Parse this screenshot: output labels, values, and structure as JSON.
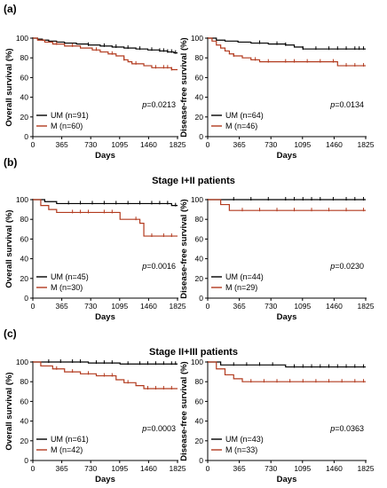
{
  "panels": [
    {
      "letter": "(a)",
      "title": ""
    },
    {
      "letter": "(b)",
      "title": "Stage I+II patients"
    },
    {
      "letter": "(c)",
      "title": "Stage II+III patients"
    }
  ],
  "colors": {
    "UM": "#000000",
    "M": "#b23a1e"
  },
  "chart_data": [
    {
      "type": "line",
      "panel": "(a)",
      "ylabel": "Overall survival (%)",
      "xlabel": "Days",
      "xticks": [
        0,
        365,
        730,
        1095,
        1460,
        1825
      ],
      "yticks": [
        0,
        20,
        40,
        60,
        80,
        100
      ],
      "xlim": [
        0,
        1825
      ],
      "ylim": [
        0,
        100
      ],
      "p_text": "=0.0213",
      "series": [
        {
          "name": "UM (n=91)",
          "group": "UM",
          "steps": [
            [
              0,
              100
            ],
            [
              60,
              99
            ],
            [
              120,
              98
            ],
            [
              200,
              97
            ],
            [
              300,
              96
            ],
            [
              400,
              95
            ],
            [
              550,
              94
            ],
            [
              700,
              93
            ],
            [
              850,
              92
            ],
            [
              1000,
              91
            ],
            [
              1150,
              90
            ],
            [
              1300,
              89
            ],
            [
              1450,
              88
            ],
            [
              1600,
              87
            ],
            [
              1700,
              86
            ],
            [
              1780,
              85
            ],
            [
              1825,
              85
            ]
          ],
          "censor": [
            700,
            900,
            1050,
            1200,
            1350,
            1500,
            1600,
            1650,
            1700,
            1750,
            1800
          ]
        },
        {
          "name": "M (n=60)",
          "group": "M",
          "steps": [
            [
              0,
              100
            ],
            [
              60,
              98
            ],
            [
              150,
              96
            ],
            [
              250,
              94
            ],
            [
              400,
              92
            ],
            [
              600,
              90
            ],
            [
              750,
              88
            ],
            [
              850,
              86
            ],
            [
              950,
              84
            ],
            [
              1050,
              82
            ],
            [
              1150,
              78
            ],
            [
              1200,
              76
            ],
            [
              1250,
              74
            ],
            [
              1400,
              72
            ],
            [
              1500,
              70
            ],
            [
              1750,
              68
            ],
            [
              1825,
              68
            ]
          ],
          "censor": [
            300,
            500,
            800,
            1000,
            1150,
            1300,
            1550,
            1650,
            1700,
            1750
          ]
        }
      ]
    },
    {
      "type": "line",
      "panel": "(a)",
      "ylabel": "Disease-free survival (%)",
      "xlabel": "Days",
      "xticks": [
        0,
        365,
        730,
        1095,
        1460,
        1825
      ],
      "yticks": [
        0,
        20,
        40,
        60,
        80,
        100
      ],
      "xlim": [
        0,
        1825
      ],
      "ylim": [
        0,
        100
      ],
      "p_text": "=0.0134",
      "series": [
        {
          "name": "UM (n=64)",
          "group": "UM",
          "steps": [
            [
              0,
              100
            ],
            [
              100,
              98
            ],
            [
              200,
              97
            ],
            [
              350,
              96
            ],
            [
              500,
              95
            ],
            [
              700,
              94
            ],
            [
              900,
              93
            ],
            [
              1000,
              91
            ],
            [
              1100,
              89
            ],
            [
              1825,
              89
            ]
          ],
          "censor": [
            600,
            800,
            900,
            1100,
            1250,
            1400,
            1500,
            1600,
            1700,
            1750,
            1800
          ]
        },
        {
          "name": "M (n=46)",
          "group": "M",
          "steps": [
            [
              0,
              100
            ],
            [
              50,
              97
            ],
            [
              100,
              93
            ],
            [
              150,
              90
            ],
            [
              200,
              87
            ],
            [
              250,
              84
            ],
            [
              300,
              82
            ],
            [
              400,
              80
            ],
            [
              500,
              78
            ],
            [
              600,
              76
            ],
            [
              1500,
              72
            ],
            [
              1825,
              72
            ]
          ],
          "censor": [
            300,
            550,
            700,
            900,
            1000,
            1150,
            1300,
            1450,
            1600,
            1700,
            1800
          ]
        }
      ]
    },
    {
      "type": "line",
      "panel": "(b)",
      "ylabel": "Overall survival (%)",
      "xlabel": "Days",
      "xticks": [
        0,
        365,
        730,
        1095,
        1460,
        1825
      ],
      "yticks": [
        0,
        20,
        40,
        60,
        80,
        100
      ],
      "xlim": [
        0,
        1825
      ],
      "ylim": [
        0,
        100
      ],
      "p_text": "=0.0016",
      "series": [
        {
          "name": "UM (n=45)",
          "group": "UM",
          "steps": [
            [
              0,
              100
            ],
            [
              150,
              98
            ],
            [
              300,
              96
            ],
            [
              1750,
              94
            ],
            [
              1825,
              94
            ]
          ],
          "censor": [
            450,
            600,
            750,
            900,
            1050,
            1200,
            1350,
            1500,
            1600,
            1700,
            1800
          ]
        },
        {
          "name": "M (n=30)",
          "group": "M",
          "steps": [
            [
              0,
              100
            ],
            [
              100,
              94
            ],
            [
              200,
              90
            ],
            [
              300,
              87
            ],
            [
              1100,
              80
            ],
            [
              1350,
              76
            ],
            [
              1400,
              63
            ],
            [
              1825,
              63
            ]
          ],
          "censor": [
            500,
            600,
            700,
            900,
            1000,
            1300,
            1500,
            1650,
            1750
          ]
        }
      ]
    },
    {
      "type": "line",
      "panel": "(b)",
      "ylabel": "Disease-free survival (%)",
      "xlabel": "Days",
      "xticks": [
        0,
        365,
        730,
        1095,
        1460,
        1825
      ],
      "yticks": [
        0,
        20,
        40,
        60,
        80,
        100
      ],
      "xlim": [
        0,
        1825
      ],
      "ylim": [
        0,
        100
      ],
      "p_text": "=0.0230",
      "series": [
        {
          "name": "UM (n=44)",
          "group": "UM",
          "steps": [
            [
              0,
              100
            ],
            [
              1825,
              100
            ]
          ],
          "censor": [
            300,
            500,
            700,
            900,
            1000,
            1100,
            1200,
            1300,
            1450,
            1600,
            1700,
            1800
          ]
        },
        {
          "name": "M (n=29)",
          "group": "M",
          "steps": [
            [
              0,
              100
            ],
            [
              150,
              95
            ],
            [
              250,
              89
            ],
            [
              1825,
              89
            ]
          ],
          "censor": [
            400,
            600,
            800,
            1000,
            1200,
            1400,
            1600,
            1800
          ]
        }
      ]
    },
    {
      "type": "line",
      "panel": "(c)",
      "ylabel": "Overall survival (%)",
      "xlabel": "Days",
      "xticks": [
        0,
        365,
        730,
        1095,
        1460,
        1825
      ],
      "yticks": [
        0,
        20,
        40,
        60,
        80,
        100
      ],
      "xlim": [
        0,
        1825
      ],
      "ylim": [
        0,
        100
      ],
      "p_text": "=0.0003",
      "series": [
        {
          "name": "UM (n=61)",
          "group": "UM",
          "steps": [
            [
              0,
              100
            ],
            [
              700,
              99
            ],
            [
              1100,
              98
            ],
            [
              1825,
              98
            ]
          ],
          "censor": [
            200,
            350,
            500,
            600,
            800,
            900,
            1000,
            1200,
            1350,
            1450,
            1550,
            1650,
            1750,
            1800
          ]
        },
        {
          "name": "M (n=42)",
          "group": "M",
          "steps": [
            [
              0,
              100
            ],
            [
              100,
              96
            ],
            [
              250,
              93
            ],
            [
              400,
              90
            ],
            [
              600,
              88
            ],
            [
              800,
              86
            ],
            [
              1050,
              82
            ],
            [
              1150,
              79
            ],
            [
              1300,
              76
            ],
            [
              1400,
              73
            ],
            [
              1825,
              73
            ]
          ],
          "censor": [
            300,
            500,
            700,
            900,
            1000,
            1200,
            1450,
            1550,
            1650,
            1750
          ]
        }
      ]
    },
    {
      "type": "line",
      "panel": "(c)",
      "ylabel": "Disease-free survival (%)",
      "xlabel": "Days",
      "xticks": [
        0,
        365,
        730,
        1095,
        1460,
        1825
      ],
      "yticks": [
        0,
        20,
        40,
        60,
        80,
        100
      ],
      "xlim": [
        0,
        1825
      ],
      "ylim": [
        0,
        100
      ],
      "p_text": "=0.0363",
      "series": [
        {
          "name": "UM (n=43)",
          "group": "UM",
          "steps": [
            [
              0,
              100
            ],
            [
              150,
              97
            ],
            [
              900,
              95
            ],
            [
              1825,
              95
            ]
          ],
          "censor": [
            300,
            450,
            600,
            750,
            1000,
            1100,
            1200,
            1300,
            1400,
            1500,
            1600,
            1700,
            1800
          ]
        },
        {
          "name": "M (n=33)",
          "group": "M",
          "steps": [
            [
              0,
              100
            ],
            [
              100,
              93
            ],
            [
              200,
              87
            ],
            [
              300,
              83
            ],
            [
              400,
              80
            ],
            [
              1825,
              80
            ]
          ],
          "censor": [
            500,
            650,
            800,
            950,
            1100,
            1250,
            1400,
            1550,
            1700,
            1800
          ]
        }
      ]
    }
  ]
}
